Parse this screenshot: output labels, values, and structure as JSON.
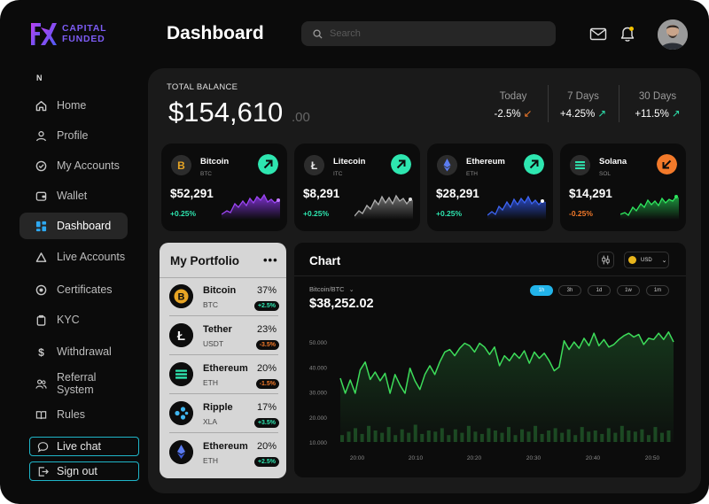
{
  "brand": {
    "line1": "CAPITAL",
    "line2": "FUNDED"
  },
  "sidebar": {
    "section_label": "N",
    "items": [
      {
        "label": "Home",
        "icon": "home-icon"
      },
      {
        "label": "Profile",
        "icon": "user-icon"
      },
      {
        "label": "My Accounts",
        "icon": "badge-check-icon"
      },
      {
        "label": "Wallet",
        "icon": "wallet-icon"
      },
      {
        "label": "Dashboard",
        "icon": "grid-icon",
        "active": true
      },
      {
        "label": "Live Accounts",
        "icon": "triangle-icon"
      },
      {
        "label": "Certificates",
        "icon": "certificate-icon"
      },
      {
        "label": "KYC",
        "icon": "id-icon"
      },
      {
        "label": "Withdrawal",
        "icon": "dollar-icon"
      },
      {
        "label": "Referral System",
        "icon": "users-icon"
      },
      {
        "label": "Rules",
        "icon": "book-icon"
      }
    ],
    "live_chat": "Live chat",
    "sign_out": "Sign out"
  },
  "header": {
    "title": "Dashboard",
    "search_placeholder": "Search"
  },
  "balance": {
    "label": "TOTAL BALANCE",
    "value": "$154,610",
    "cents": ".00",
    "stats": [
      {
        "label": "Today",
        "value": "-2.5%",
        "direction": "down"
      },
      {
        "label": "7 Days",
        "value": "+4.25%",
        "direction": "up"
      },
      {
        "label": "30 Days",
        "value": "+11.5%",
        "direction": "up"
      }
    ]
  },
  "coins": [
    {
      "name": "Bitcoin",
      "symbol": "BTC",
      "price": "$52,291",
      "change": "+0.25%",
      "trend": "up",
      "color": "#8a35e6"
    },
    {
      "name": "Litecoin",
      "symbol": "ITC",
      "price": "$8,291",
      "change": "+0.25%",
      "trend": "up",
      "color": "#9a9a9a"
    },
    {
      "name": "Ethereum",
      "symbol": "ETH",
      "price": "$28,291",
      "change": "+0.25%",
      "trend": "up",
      "color": "#2f55e6"
    },
    {
      "name": "Solana",
      "symbol": "SOL",
      "price": "$14,291",
      "change": "-0.25%",
      "trend": "down",
      "color": "#25d053"
    }
  ],
  "portfolio": {
    "title": "My Portfolio",
    "items": [
      {
        "name": "Bitcoin",
        "symbol": "BTC",
        "percent": "37%",
        "change": "+2.5%",
        "positive": true
      },
      {
        "name": "Tether",
        "symbol": "USDT",
        "percent": "23%",
        "change": "-3.5%",
        "positive": false
      },
      {
        "name": "Ethereum",
        "symbol": "ETH",
        "percent": "20%",
        "change": "-1.5%",
        "positive": false
      },
      {
        "name": "Ripple",
        "symbol": "XLA",
        "percent": "17%",
        "change": "+3.5%",
        "positive": true
      },
      {
        "name": "Ethereum",
        "symbol": "ETH",
        "percent": "20%",
        "change": "+2.5%",
        "positive": true
      }
    ]
  },
  "chart": {
    "title": "Chart",
    "currency": "USD",
    "pair": "Bitcoin/BTC",
    "price": "$38,252.02",
    "timeframes": [
      "1h",
      "3h",
      "1d",
      "1w",
      "1m"
    ],
    "active_timeframe": "1h"
  },
  "colors": {
    "positive": "#2ee6b0",
    "negative": "#f37a2a",
    "accent": "#22b4ea",
    "line": "#3ddc5a"
  },
  "chart_data": {
    "type": "line",
    "ylim": [
      10000,
      55000
    ],
    "y_ticks": [
      "50.000",
      "40.000",
      "30.000",
      "20.000",
      "10.000"
    ],
    "x_ticks": [
      "20:00",
      "20:10",
      "20:20",
      "20:30",
      "20:40",
      "20:50"
    ],
    "series": [
      {
        "values": [
          35500,
          29500,
          34800,
          29500,
          38800,
          42000,
          35000,
          38000,
          34500,
          37500,
          29500,
          37000,
          32800,
          29500,
          39500,
          34500,
          31000,
          37000,
          40500,
          37000,
          42000,
          46000,
          47000,
          44500,
          47500,
          49500,
          48500,
          46000,
          49500,
          48000,
          45000,
          48000,
          40500,
          44500,
          42500,
          45500,
          43500,
          46500,
          41500,
          46000,
          43500,
          45500,
          42500,
          38500,
          40000,
          50500,
          47000,
          50000,
          47500,
          51500,
          48500,
          53500,
          48500,
          51000,
          48000,
          49000,
          51000,
          52500,
          53500,
          52000,
          53000,
          49000,
          51500,
          51000,
          53500,
          51000,
          54000,
          50000
        ]
      }
    ],
    "volume": [
      0.3,
      0.45,
      0.6,
      0.35,
      0.7,
      0.5,
      0.4,
      0.65,
      0.3,
      0.55,
      0.4,
      0.75,
      0.35,
      0.5,
      0.45,
      0.6,
      0.3,
      0.55,
      0.4,
      0.7,
      0.45,
      0.35,
      0.6,
      0.5,
      0.4,
      0.65,
      0.3,
      0.55,
      0.45,
      0.7,
      0.35,
      0.5,
      0.6,
      0.4,
      0.55,
      0.3,
      0.65,
      0.45,
      0.5,
      0.35,
      0.6,
      0.4,
      0.7,
      0.5,
      0.45,
      0.55,
      0.3,
      0.65,
      0.4,
      0.5
    ]
  }
}
